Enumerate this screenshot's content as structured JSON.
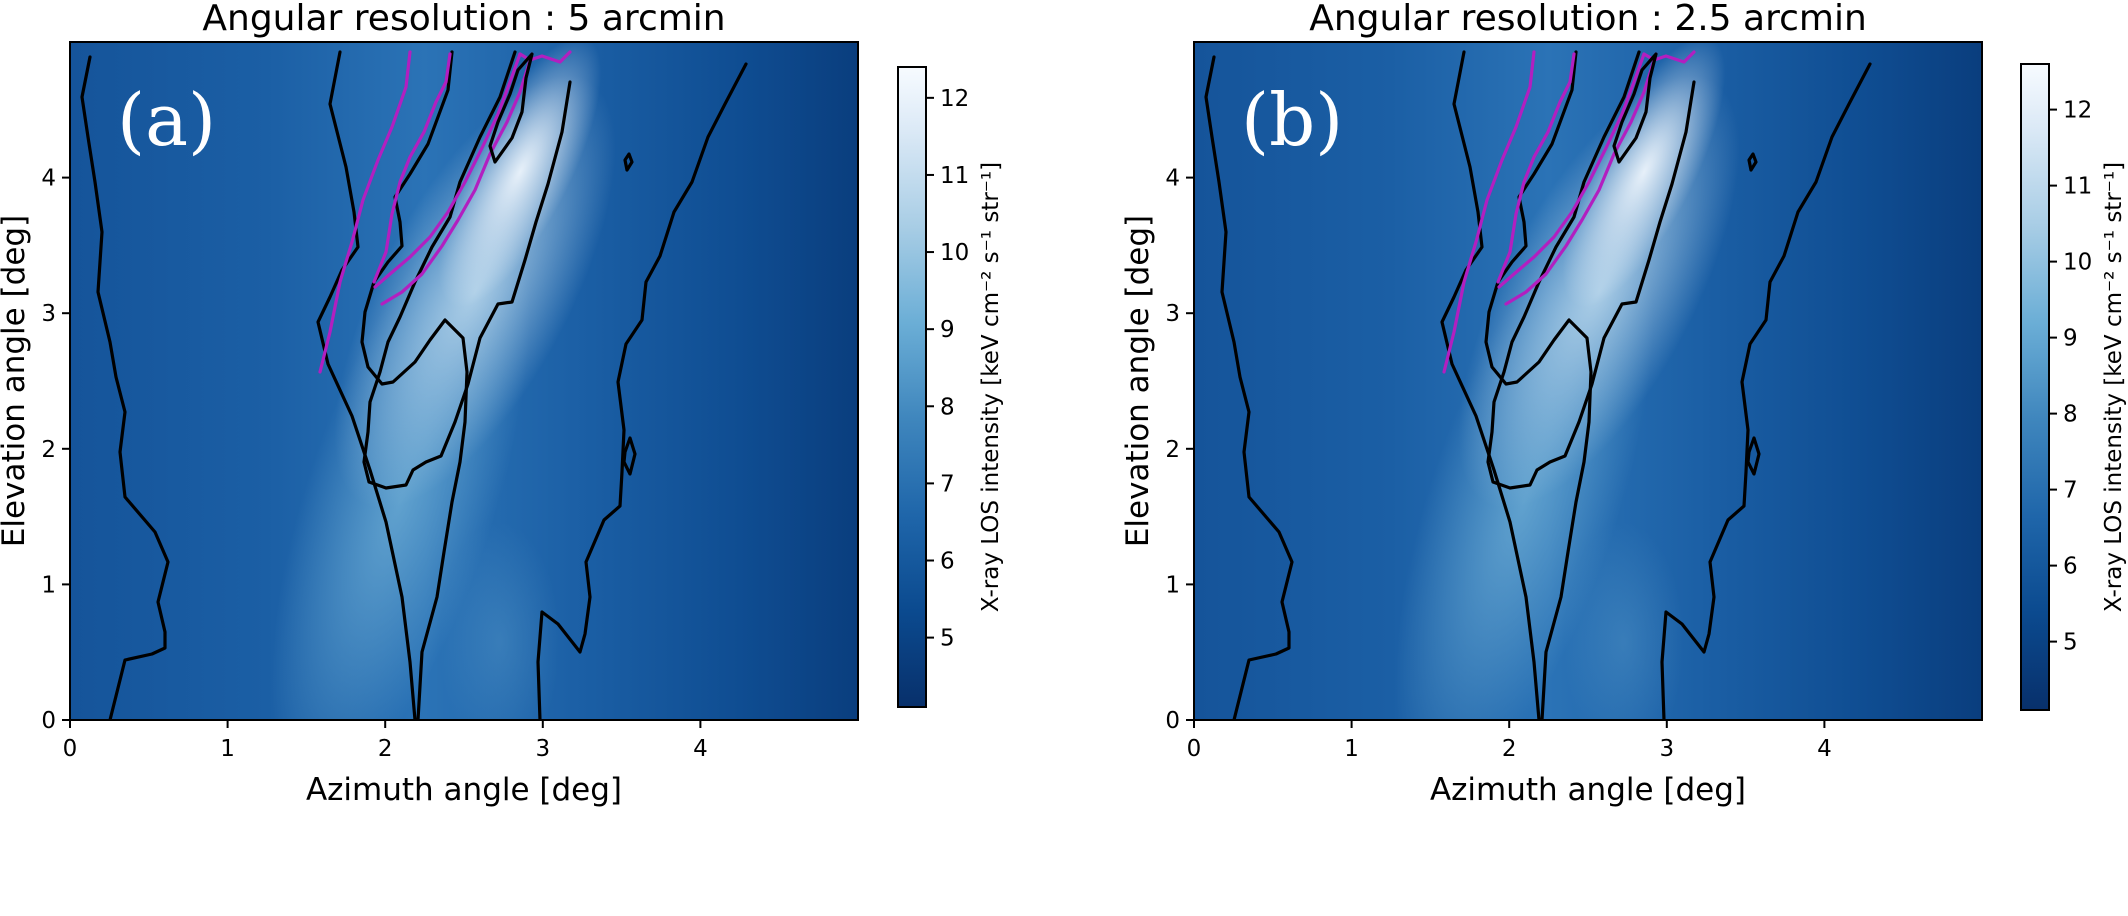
{
  "chart_data": [
    {
      "type": "heatmap",
      "panel_label": "(a)",
      "title": "Angular resolution : 5 arcmin",
      "xlabel": "Azimuth angle [deg]",
      "ylabel": "Elevation angle [deg]",
      "xlim": [
        0,
        5
      ],
      "ylim": [
        0,
        5
      ],
      "xticks": [
        0,
        1,
        2,
        3,
        4
      ],
      "yticks": [
        0,
        1,
        2,
        3,
        4
      ],
      "colormap": "Blues_r",
      "colorbar": {
        "label": "X-ray LOS intensity [keV cm⁻² s⁻¹ str⁻¹]",
        "range": [
          4.1,
          12.4
        ],
        "ticks": [
          5,
          6,
          7,
          8,
          9,
          10,
          11,
          12
        ]
      },
      "contour_colors": [
        "#000000",
        "#b21fc0"
      ]
    },
    {
      "type": "heatmap",
      "panel_label": "(b)",
      "title": "Angular resolution : 2.5 arcmin",
      "xlabel": "Azimuth angle [deg]",
      "ylabel": "Elevation angle [deg]",
      "xlim": [
        0,
        5
      ],
      "ylim": [
        0,
        5
      ],
      "xticks": [
        0,
        1,
        2,
        3,
        4
      ],
      "yticks": [
        0,
        1,
        2,
        3,
        4
      ],
      "colormap": "Blues_r",
      "colorbar": {
        "label": "X-ray LOS intensity [keV cm⁻² s⁻¹ str⁻¹]",
        "range": [
          4.1,
          12.6
        ],
        "ticks": [
          5,
          6,
          7,
          8,
          9,
          10,
          11,
          12
        ]
      },
      "contour_colors": [
        "#000000",
        "#b21fc0"
      ]
    }
  ]
}
